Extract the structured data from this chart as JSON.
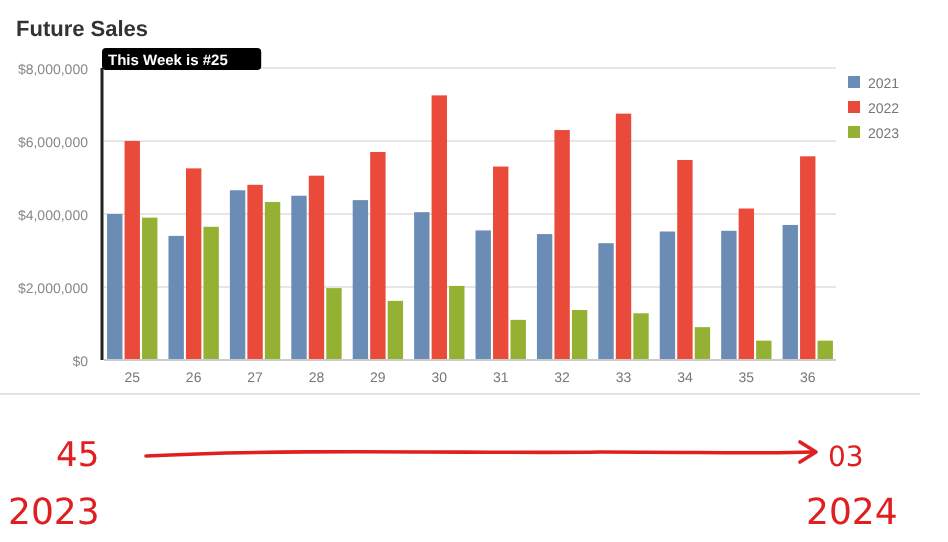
{
  "chart_data": {
    "type": "bar",
    "title": "Future Sales",
    "categories": [
      "25",
      "26",
      "27",
      "28",
      "29",
      "30",
      "31",
      "32",
      "33",
      "34",
      "35",
      "36"
    ],
    "series": [
      {
        "name": "2021",
        "color": "#6a8cb5",
        "values": [
          4000000,
          3400000,
          4650000,
          4500000,
          4380000,
          4050000,
          3550000,
          3450000,
          3200000,
          3520000,
          3540000,
          3700000
        ]
      },
      {
        "name": "2022",
        "color": "#ea4a3a",
        "values": [
          6000000,
          5250000,
          4800000,
          5050000,
          5700000,
          7250000,
          5300000,
          6300000,
          6750000,
          5480000,
          4150000,
          5580000
        ]
      },
      {
        "name": "2023",
        "color": "#95b133",
        "values": [
          3900000,
          3650000,
          4330000,
          1970000,
          1620000,
          2030000,
          1100000,
          1370000,
          1280000,
          900000,
          530000,
          530000
        ]
      }
    ],
    "ylim": [
      0,
      8000000
    ],
    "yticks": [
      {
        "value": 0,
        "label": "$0"
      },
      {
        "value": 2000000,
        "label": "$2,000,000"
      },
      {
        "value": 4000000,
        "label": "$4,000,000"
      },
      {
        "value": 6000000,
        "label": "$6,000,000"
      },
      {
        "value": 8000000,
        "label": "$8,000,000"
      }
    ],
    "grid": "y",
    "legend": "right",
    "annotations": [
      "This Week is #25",
      "45",
      "2023",
      "03",
      "2024"
    ]
  }
}
